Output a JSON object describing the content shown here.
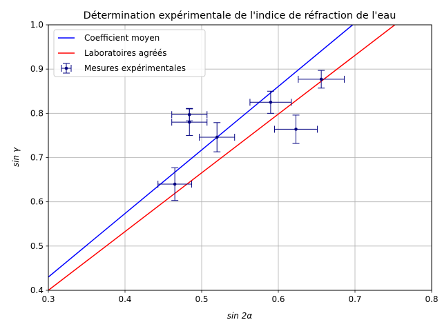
{
  "chart_data": {
    "type": "scatter",
    "title": "Détermination expérimentale de l'indice de réfraction de l'eau",
    "xlabel": "sin 2α",
    "ylabel": "sin γ",
    "xlim": [
      0.3,
      0.8
    ],
    "ylim": [
      0.4,
      1.0
    ],
    "xticks": [
      0.3,
      0.4,
      0.5,
      0.6,
      0.7,
      0.8
    ],
    "xtick_labels": [
      "0.3",
      "0.4",
      "0.5",
      "0.6",
      "0.7",
      "0.8"
    ],
    "yticks": [
      0.4,
      0.5,
      0.6,
      0.7,
      0.8,
      0.9,
      1.0
    ],
    "ytick_labels": [
      "0.4",
      "0.5",
      "0.6",
      "0.7",
      "0.8",
      "0.9",
      "1.0"
    ],
    "grid": true,
    "legend_position": "top-left",
    "series": [
      {
        "name": "Coefficient moyen",
        "kind": "line",
        "color": "#0000ff",
        "x": [
          0.3,
          0.697
        ],
        "y": [
          0.43,
          1.0
        ]
      },
      {
        "name": "Laboratoires agréés",
        "kind": "line",
        "color": "#ff0000",
        "x": [
          0.3,
          0.752
        ],
        "y": [
          0.4,
          1.0
        ]
      },
      {
        "name": "Mesures expérimentales",
        "kind": "errorbar",
        "color": "#000080",
        "points": [
          {
            "x": 0.465,
            "y": 0.64,
            "xerr": 0.022,
            "yerr": 0.037
          },
          {
            "x": 0.484,
            "y": 0.797,
            "xerr": 0.023,
            "yerr": 0.014
          },
          {
            "x": 0.484,
            "y": 0.78,
            "xerr": 0.023,
            "yerr": 0.03
          },
          {
            "x": 0.52,
            "y": 0.746,
            "xerr": 0.023,
            "yerr": 0.033
          },
          {
            "x": 0.59,
            "y": 0.825,
            "xerr": 0.027,
            "yerr": 0.025
          },
          {
            "x": 0.623,
            "y": 0.764,
            "xerr": 0.028,
            "yerr": 0.032
          },
          {
            "x": 0.656,
            "y": 0.877,
            "xerr": 0.03,
            "yerr": 0.02
          }
        ]
      }
    ]
  }
}
